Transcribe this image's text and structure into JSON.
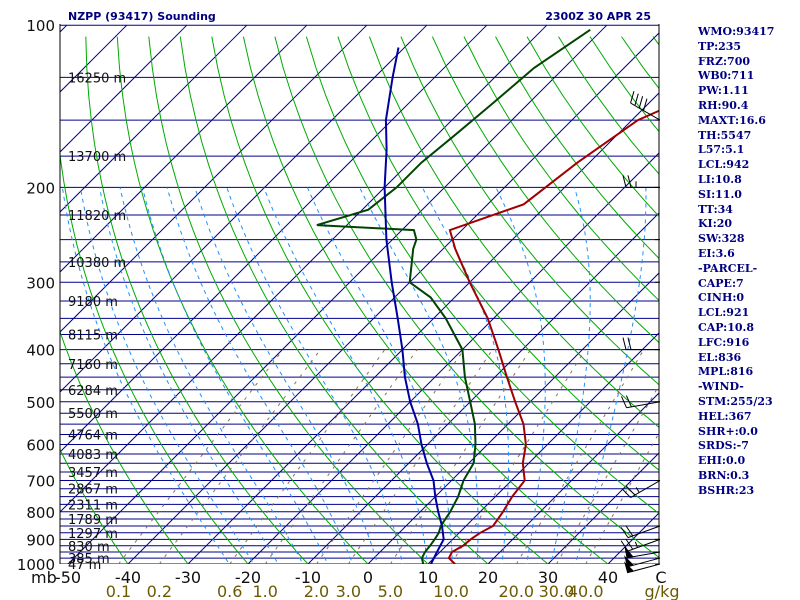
{
  "header": {
    "station": "NZPP (93417) Sounding",
    "time": "2300Z 30 APR 25"
  },
  "indices": [
    "WMO:93417",
    "TP:235",
    "FRZ:700",
    "WB0:711",
    "PW:1.11",
    "RH:90.4",
    "MAXT:16.6",
    "TH:5547",
    "L57:5.1",
    "LCL:942",
    "LI:10.8",
    "SI:11.0",
    "TT:34",
    "KI:20",
    "SW:328",
    "EI:3.6",
    "-PARCEL-",
    "CAPE:7",
    "CINH:0",
    "LCL:921",
    "CAP:10.8",
    "LFC:916",
    "EL:836",
    "MPL:816",
    "-WIND-",
    "STM:255/23",
    "HEL:367",
    "SHR+:0.0",
    "SRDS:-7",
    "EHI:0.0",
    "BRN:0.3",
    "BSHR:23"
  ],
  "chart_data": {
    "type": "line",
    "title": "NZPP (93417) Sounding 2300Z 30 APR 25",
    "y_axis": {
      "label": "mb",
      "scale": "log",
      "range": [
        1000,
        100
      ],
      "ticks": [
        100,
        200,
        300,
        400,
        500,
        600,
        700,
        800,
        900,
        1000
      ]
    },
    "x_axis": {
      "label": "C",
      "range": [
        -50,
        50
      ],
      "ticks": [
        -50,
        -40,
        -30,
        -20,
        -10,
        0,
        10,
        20,
        30,
        40
      ]
    },
    "mixing_ratio_axis": {
      "label": "g/kg",
      "ticks": [
        "0.1",
        "0.2",
        "0.6",
        "1.0",
        "2.0",
        "3.0",
        "5.0",
        "10.0",
        "20.0",
        "30.0",
        "40.0"
      ],
      "values": [
        0.1,
        0.2,
        0.6,
        1.0,
        2.0,
        3.0,
        5.0,
        10.0,
        20.0,
        30.0,
        40.0
      ]
    },
    "height_labels": [
      {
        "p": 1000,
        "label": "47 m"
      },
      {
        "p": 975,
        "label": "385 m"
      },
      {
        "p": 925,
        "label": "830 m"
      },
      {
        "p": 875,
        "label": "1297 m"
      },
      {
        "p": 825,
        "label": "1789 m"
      },
      {
        "p": 775,
        "label": "2311 m"
      },
      {
        "p": 725,
        "label": "2867 m"
      },
      {
        "p": 675,
        "label": "3457 m"
      },
      {
        "p": 625,
        "label": "4083 m"
      },
      {
        "p": 575,
        "label": "4764 m"
      },
      {
        "p": 525,
        "label": "5500 m"
      },
      {
        "p": 475,
        "label": "6284 m"
      },
      {
        "p": 425,
        "label": "7160 m"
      },
      {
        "p": 375,
        "label": "8115 m"
      },
      {
        "p": 325,
        "label": "9180 m"
      },
      {
        "p": 275,
        "label": "10380 m"
      },
      {
        "p": 225,
        "label": "11820 m"
      },
      {
        "p": 175,
        "label": "13700 m"
      },
      {
        "p": 125,
        "label": "16250 m"
      }
    ],
    "series": [
      {
        "color": "#a00000",
        "points": [
          [
            1000,
            14.5
          ],
          [
            975,
            12.5
          ],
          [
            950,
            12.0
          ],
          [
            925,
            12.8
          ],
          [
            900,
            13.0
          ],
          [
            875,
            13.5
          ],
          [
            850,
            14.5
          ],
          [
            800,
            13.8
          ],
          [
            750,
            12.8
          ],
          [
            700,
            12.2
          ],
          [
            650,
            9.0
          ],
          [
            600,
            6.4
          ],
          [
            550,
            2.6
          ],
          [
            500,
            -2.5
          ],
          [
            450,
            -8.0
          ],
          [
            400,
            -14.0
          ],
          [
            350,
            -21.0
          ],
          [
            300,
            -30.0
          ],
          [
            260,
            -38.0
          ],
          [
            240,
            -42.0
          ],
          [
            215,
            -34.0
          ],
          [
            180,
            -32.0
          ],
          [
            150,
            -29.0
          ],
          [
            125,
            -20.0
          ],
          [
            110,
            -8.0
          ],
          [
            102,
            -1.0
          ]
        ]
      },
      {
        "color": "#004400",
        "points": [
          [
            1000,
            9.2
          ],
          [
            975,
            8.0
          ],
          [
            950,
            7.5
          ],
          [
            925,
            7.3
          ],
          [
            900,
            7.0
          ],
          [
            875,
            6.6
          ],
          [
            850,
            5.8
          ],
          [
            800,
            5.0
          ],
          [
            750,
            3.8
          ],
          [
            700,
            2.0
          ],
          [
            650,
            0.8
          ],
          [
            600,
            -2.0
          ],
          [
            550,
            -5.5
          ],
          [
            500,
            -10.0
          ],
          [
            450,
            -15.0
          ],
          [
            400,
            -20.0
          ],
          [
            350,
            -28.0
          ],
          [
            320,
            -34.0
          ],
          [
            300,
            -40.0
          ],
          [
            260,
            -45.0
          ],
          [
            250,
            -46.0
          ],
          [
            240,
            -48.0
          ],
          [
            235,
            -65.0
          ],
          [
            220,
            -59.0
          ],
          [
            200,
            -58.0
          ],
          [
            180,
            -58.0
          ],
          [
            160,
            -57.0
          ],
          [
            140,
            -56.0
          ],
          [
            120,
            -55.0
          ],
          [
            102,
            -52.0
          ]
        ]
      },
      {
        "color": "#0000a0",
        "points": [
          [
            1000,
            10.5
          ],
          [
            975,
            10.0
          ],
          [
            950,
            9.5
          ],
          [
            925,
            9.0
          ],
          [
            900,
            8.5
          ],
          [
            850,
            6.0
          ],
          [
            800,
            3.0
          ],
          [
            750,
            0.0
          ],
          [
            700,
            -3.0
          ],
          [
            650,
            -7.0
          ],
          [
            600,
            -11.0
          ],
          [
            550,
            -15.0
          ],
          [
            500,
            -20.0
          ],
          [
            450,
            -25.0
          ],
          [
            400,
            -30.0
          ],
          [
            350,
            -36.0
          ],
          [
            300,
            -43.0
          ],
          [
            250,
            -51.0
          ],
          [
            200,
            -60.0
          ],
          [
            170,
            -66.0
          ],
          [
            150,
            -71.0
          ],
          [
            125,
            -77.0
          ],
          [
            110,
            -81.0
          ]
        ]
      }
    ],
    "winds": [
      {
        "p": 1000,
        "dir": 255,
        "spd": 50
      },
      {
        "p": 975,
        "dir": 255,
        "spd": 50
      },
      {
        "p": 950,
        "dir": 260,
        "spd": 50
      },
      {
        "p": 900,
        "dir": 250,
        "spd": 25
      },
      {
        "p": 850,
        "dir": 250,
        "spd": 20
      },
      {
        "p": 700,
        "dir": 240,
        "spd": 25
      },
      {
        "p": 500,
        "dir": 260,
        "spd": 20
      },
      {
        "p": 400,
        "dir": 270,
        "spd": 20
      },
      {
        "p": 300,
        "dir": 250,
        "spd": 0
      },
      {
        "p": 250,
        "dir": 250,
        "spd": 0
      },
      {
        "p": 200,
        "dir": 270,
        "spd": 25
      },
      {
        "p": 150,
        "dir": 300,
        "spd": 40
      }
    ],
    "colors": {
      "isobar": "#00008b",
      "isotherm": "#000090",
      "dry_adiabat": "#00aa00",
      "moist_adiabat": "#1e90ff",
      "mixing_ratio": "#8b7355",
      "temperature": "#a00000",
      "dewpoint": "#004400",
      "parcel": "#0000a0",
      "wind": "#000000"
    }
  }
}
